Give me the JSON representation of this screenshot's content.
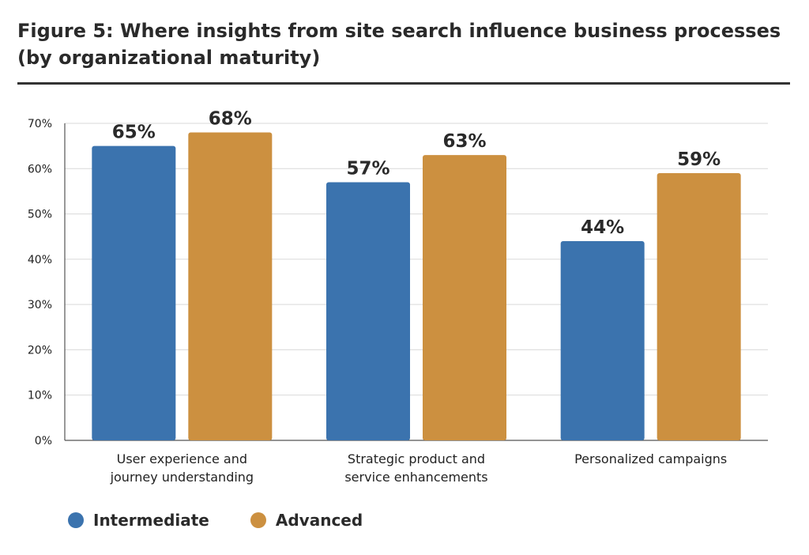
{
  "title": {
    "line1": "Figure 5:  Where insights from site search influence business processes",
    "line2": "(by organizational maturity)"
  },
  "colors": {
    "intermediate": "#3b73ae",
    "advanced": "#cc9040",
    "grid": "#d9d9d9",
    "axis": "#555555",
    "rule": "#333333"
  },
  "chart_data": {
    "type": "bar",
    "categories": [
      [
        "User experience and",
        "journey understanding"
      ],
      [
        "Strategic product and",
        "service enhancements"
      ],
      [
        "Personalized campaigns"
      ]
    ],
    "series": [
      {
        "name": "Intermediate",
        "values": [
          65,
          57,
          44
        ],
        "data_labels": [
          "65%",
          "57%",
          "44%"
        ]
      },
      {
        "name": "Advanced",
        "values": [
          68,
          63,
          59
        ],
        "data_labels": [
          "68%",
          "63%",
          "59%"
        ]
      }
    ],
    "ylim": [
      0,
      70
    ],
    "yticks": [
      0,
      10,
      20,
      30,
      40,
      50,
      60,
      70
    ],
    "ytick_labels": [
      "0%",
      "10%",
      "20%",
      "30%",
      "40%",
      "50%",
      "60%",
      "70%"
    ],
    "grid": true,
    "legend_position": "bottom-left"
  },
  "legend": {
    "items": [
      {
        "label": "Intermediate",
        "color": "#3b73ae"
      },
      {
        "label": "Advanced",
        "color": "#cc9040"
      }
    ]
  }
}
